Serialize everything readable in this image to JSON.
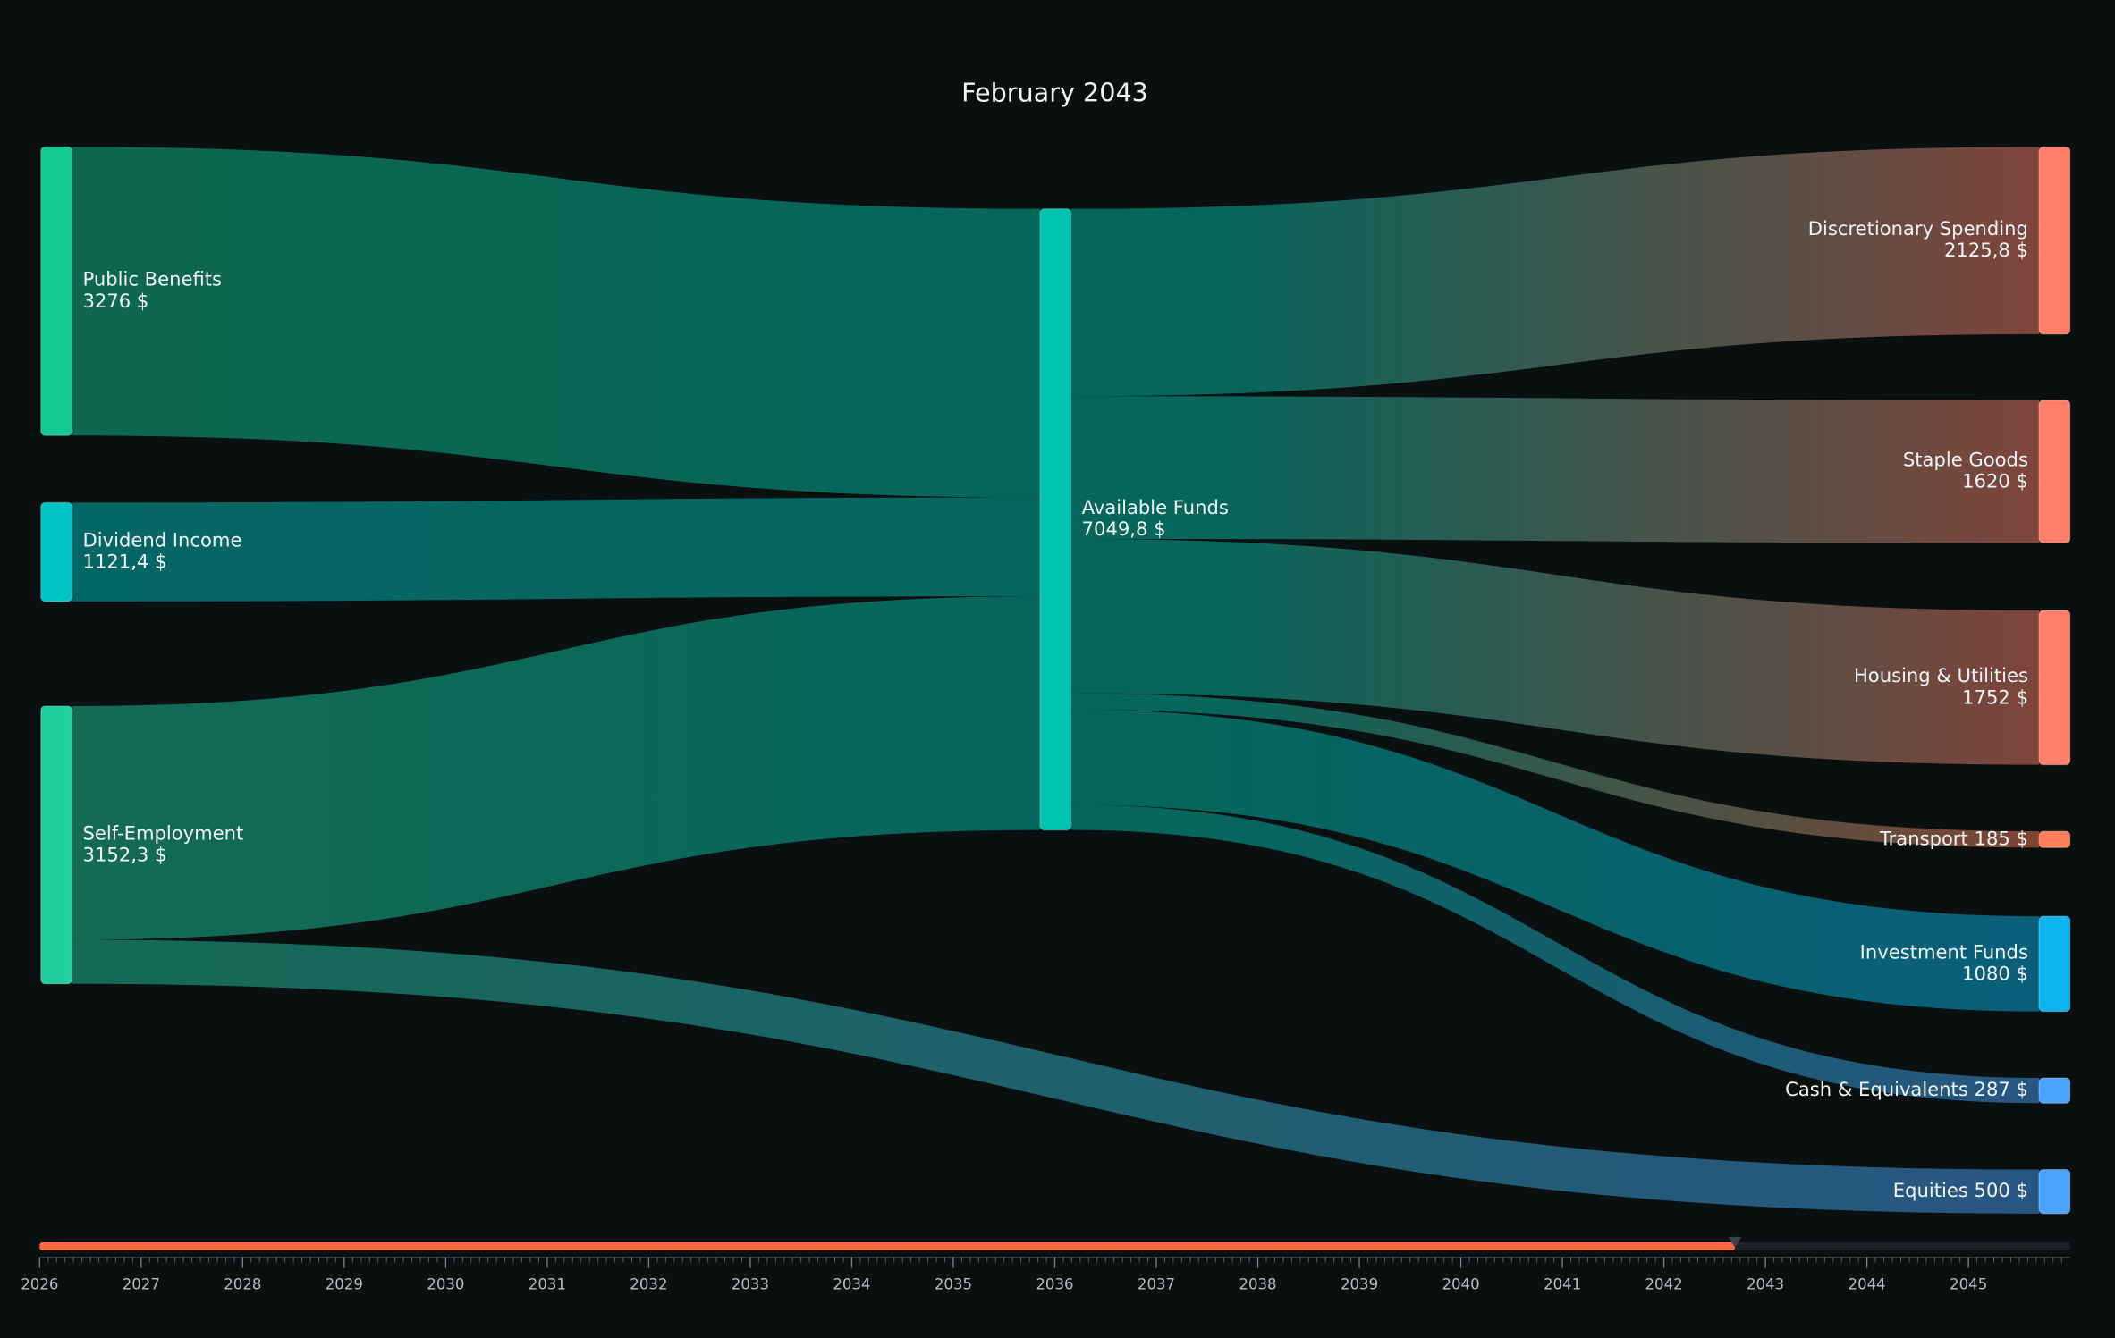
{
  "chart_data": {
    "type": "sankey",
    "title": "February 2043",
    "nodes": [
      {
        "name": "Public Benefits",
        "value": 3276,
        "value_label": "3276 $",
        "color": "#12c98f"
      },
      {
        "name": "Dividend Income",
        "value": 1121.4,
        "value_label": "1121,4 $",
        "color": "#00c4c4"
      },
      {
        "name": "Self-Employment",
        "value": 3152.3,
        "value_label": "3152,3 $",
        "color": "#1fcf9f"
      },
      {
        "name": "Available Funds",
        "value": 7049.8,
        "value_label": "7049,8 $",
        "color": "#00c4b0"
      },
      {
        "name": "Discretionary Spending",
        "value": 2125.8,
        "value_label": "2125,8 $",
        "color": "#ff7f6a"
      },
      {
        "name": "Staple Goods",
        "value": 1620,
        "value_label": "1620 $",
        "color": "#ff7f6a"
      },
      {
        "name": "Housing & Utilities",
        "value": 1752,
        "value_label": "1752 $",
        "color": "#ff7f6a"
      },
      {
        "name": "Transport",
        "value": 185,
        "value_label": "185 $",
        "color": "#ff7f5a"
      },
      {
        "name": "Investment Funds",
        "value": 1080,
        "value_label": "1080 $",
        "color": "#0bb5f0"
      },
      {
        "name": "Cash & Equivalents",
        "value": 287,
        "value_label": "287 $",
        "color": "#4aa3ff"
      },
      {
        "name": "Equities",
        "value": 500,
        "value_label": "500 $",
        "color": "#4aa3ff"
      }
    ],
    "links": [
      {
        "source": 0,
        "target": 3,
        "value": 3276
      },
      {
        "source": 1,
        "target": 3,
        "value": 1121.4
      },
      {
        "source": 2,
        "target": 3,
        "value": 2652.3
      },
      {
        "source": 2,
        "target": 10,
        "value": 500
      },
      {
        "source": 3,
        "target": 4,
        "value": 2125.8
      },
      {
        "source": 3,
        "target": 5,
        "value": 1620
      },
      {
        "source": 3,
        "target": 6,
        "value": 1752
      },
      {
        "source": 3,
        "target": 7,
        "value": 185
      },
      {
        "source": 3,
        "target": 8,
        "value": 1080
      },
      {
        "source": 3,
        "target": 9,
        "value": 287
      }
    ],
    "timeline": {
      "xlim": [
        2026,
        2046
      ],
      "xticks": [
        2026,
        2027,
        2028,
        2029,
        2030,
        2031,
        2032,
        2033,
        2034,
        2035,
        2036,
        2037,
        2038,
        2039,
        2040,
        2041,
        2042,
        2043,
        2044,
        2045
      ],
      "value": 2042.7,
      "color": "#ff6a3d"
    }
  }
}
